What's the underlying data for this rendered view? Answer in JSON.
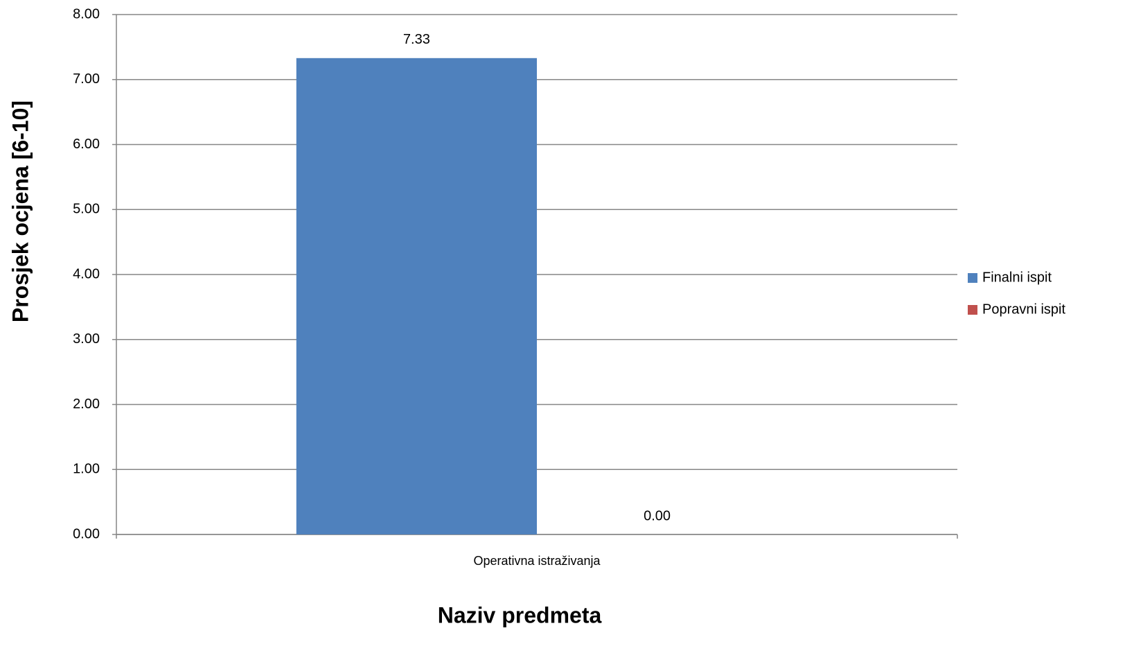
{
  "chart_data": {
    "type": "bar",
    "x_label": "Naziv predmeta",
    "y_label": "Prosjek ocjena [6-10]",
    "categories": [
      "Operativna istraživanja"
    ],
    "series": [
      {
        "name": "Finalni ispit",
        "color": "#4f81bd",
        "values": [
          7.33
        ],
        "value_labels": [
          "7.33"
        ]
      },
      {
        "name": "Popravni ispit",
        "color": "#c0504d",
        "values": [
          0
        ],
        "value_labels": [
          "0.00"
        ]
      }
    ],
    "ylim": [
      0,
      8
    ],
    "yticks": [
      {
        "value": 0,
        "label": "0.00"
      },
      {
        "value": 1,
        "label": "1.00"
      },
      {
        "value": 2,
        "label": "2.00"
      },
      {
        "value": 3,
        "label": "3.00"
      },
      {
        "value": 4,
        "label": "4.00"
      },
      {
        "value": 5,
        "label": "5.00"
      },
      {
        "value": 6,
        "label": "6.00"
      },
      {
        "value": 7,
        "label": "7.00"
      },
      {
        "value": 8,
        "label": "8.00"
      }
    ],
    "grid": true,
    "legend": "right"
  }
}
